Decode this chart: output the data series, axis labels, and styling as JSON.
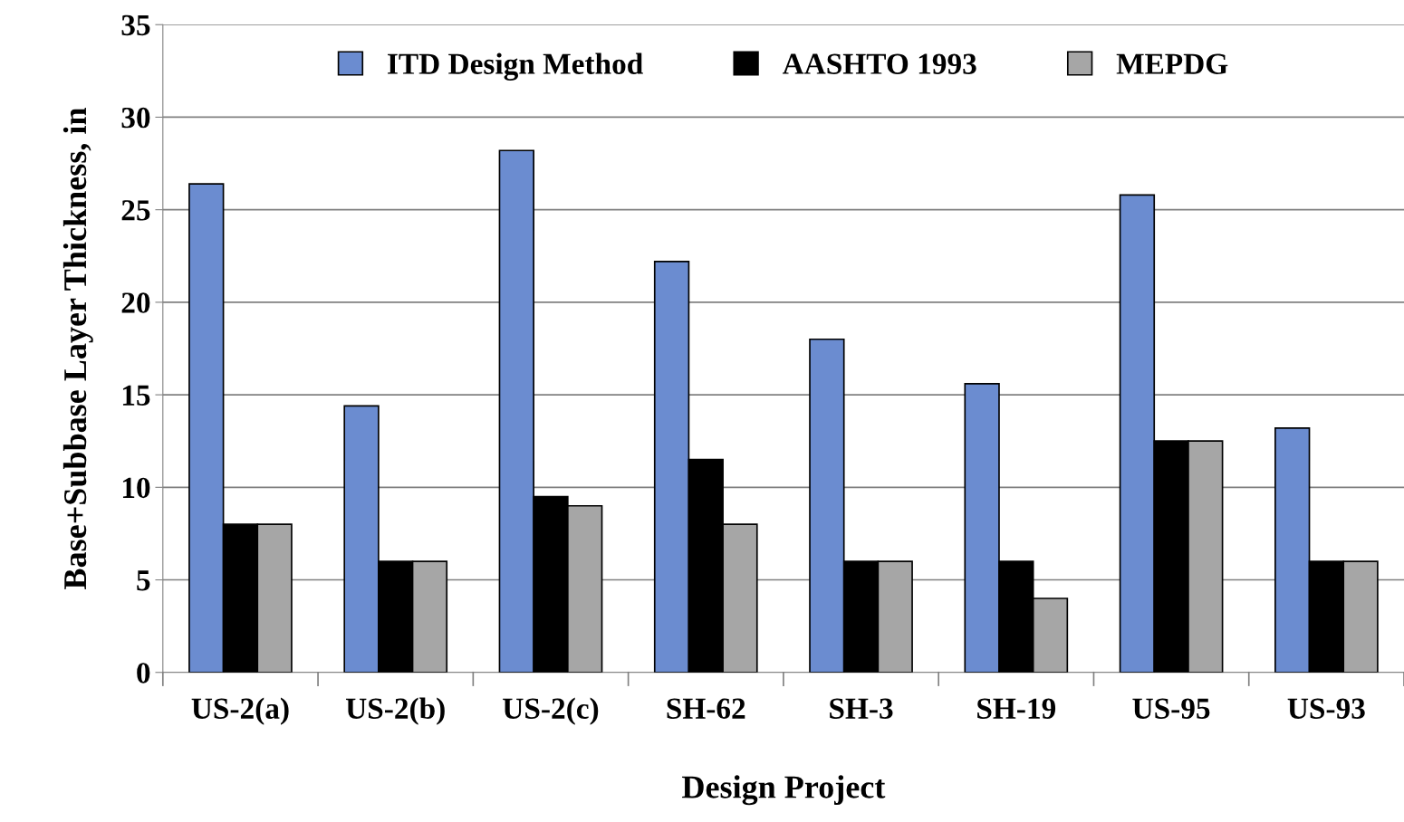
{
  "chart_data": {
    "type": "bar",
    "xlabel": "Design Project",
    "ylabel": "Base+Subbase Layer Thickness, in",
    "categories": [
      "US-2(a)",
      "US-2(b)",
      "US-2(c)",
      "SH-62",
      "SH-3",
      "SH-19",
      "US-95",
      "US-93"
    ],
    "series": [
      {
        "name": "ITD Design Method",
        "color": "#6b8cd0",
        "values": [
          26.4,
          14.4,
          28.2,
          22.2,
          18.0,
          15.6,
          25.8,
          13.2
        ]
      },
      {
        "name": "AASHTO 1993",
        "color": "#000000",
        "values": [
          8,
          6,
          9.5,
          11.5,
          6,
          6,
          12.5,
          6
        ]
      },
      {
        "name": "MEPDG",
        "color": "#a6a6a6",
        "values": [
          8,
          6,
          9,
          8,
          6,
          4,
          12.5,
          6
        ]
      }
    ],
    "ylim": [
      0,
      35
    ],
    "yticks": [
      0,
      5,
      10,
      15,
      20,
      25,
      30,
      35
    ],
    "grid": "y",
    "legend": "top"
  }
}
